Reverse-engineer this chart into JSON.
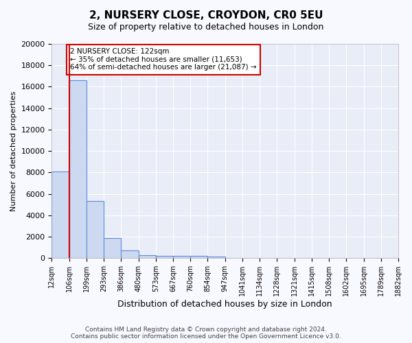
{
  "title": "2, NURSERY CLOSE, CROYDON, CR0 5EU",
  "subtitle": "Size of property relative to detached houses in London",
  "xlabel": "Distribution of detached houses by size in London",
  "ylabel": "Number of detached properties",
  "bin_labels": [
    "12sqm",
    "106sqm",
    "199sqm",
    "293sqm",
    "386sqm",
    "480sqm",
    "573sqm",
    "667sqm",
    "760sqm",
    "854sqm",
    "947sqm",
    "1041sqm",
    "1134sqm",
    "1228sqm",
    "1321sqm",
    "1415sqm",
    "1508sqm",
    "1602sqm",
    "1695sqm",
    "1789sqm",
    "1882sqm"
  ],
  "bar_values": [
    8100,
    16600,
    5300,
    1850,
    700,
    300,
    220,
    200,
    180,
    150,
    0,
    0,
    0,
    0,
    0,
    0,
    0,
    0,
    0,
    0
  ],
  "ylim": [
    0,
    20000
  ],
  "yticks": [
    0,
    2000,
    4000,
    6000,
    8000,
    10000,
    12000,
    14000,
    16000,
    18000,
    20000
  ],
  "property_line_x": 1.0,
  "annotation_text": "2 NURSERY CLOSE: 122sqm\n← 35% of detached houses are smaller (11,653)\n64% of semi-detached houses are larger (21,087) →",
  "bar_fill_color": "#ccd9f0",
  "bar_edge_color": "#5b8dd9",
  "property_line_color": "#cc0000",
  "annotation_box_edge": "#cc0000",
  "background_color": "#e8edf8",
  "grid_color": "#ffffff",
  "footer_text": "Contains HM Land Registry data © Crown copyright and database right 2024.\nContains public sector information licensed under the Open Government Licence v3.0."
}
